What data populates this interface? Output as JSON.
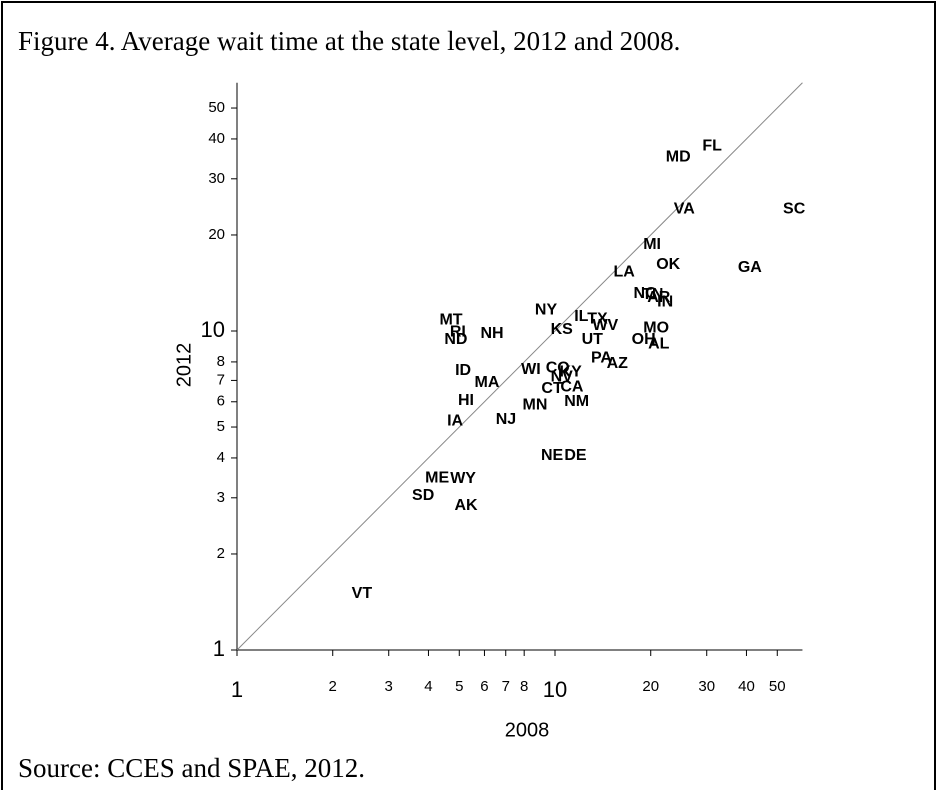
{
  "chart_data": {
    "type": "scatter",
    "title": "Figure 4. Average wait time at the state level, 2012 and 2008.",
    "x_label": "2008",
    "y_label": "2012",
    "source": "Source:  CCES and SPAE, 2012.",
    "log_x": true,
    "log_y": true,
    "xlim": [
      1,
      60
    ],
    "ylim": [
      1,
      60
    ],
    "xticks": [
      1,
      2,
      3,
      4,
      5,
      6,
      7,
      8,
      10,
      20,
      30,
      40,
      50
    ],
    "yticks": [
      1,
      2,
      3,
      4,
      5,
      6,
      7,
      8,
      10,
      20,
      30,
      40,
      50
    ],
    "diagonal": true,
    "point_labels": [
      "FL",
      "MD",
      "VA",
      "SC",
      "MI",
      "OK",
      "GA",
      "LA",
      "NC",
      "TN",
      "AR",
      "IN",
      "NY",
      "IL",
      "TX",
      "MT",
      "WV",
      "MO",
      "KS",
      "RI",
      "NH",
      "UT",
      "ND",
      "OH",
      "AL",
      "PA",
      "AZ",
      "ID",
      "WI",
      "CO",
      "NV",
      "KY",
      "MA",
      "CT",
      "CA",
      "HI",
      "MN",
      "NM",
      "IA",
      "NJ",
      "NE",
      "DE",
      "ME",
      "WY",
      "SD",
      "AK",
      "VT"
    ],
    "x": [
      31.2,
      24.4,
      25.5,
      56.5,
      20.2,
      22.7,
      41.0,
      16.5,
      19.2,
      20.3,
      21.2,
      22.2,
      9.37,
      12.1,
      13.6,
      4.71,
      14.4,
      20.8,
      10.5,
      4.95,
      6.34,
      13.1,
      4.88,
      19.0,
      21.2,
      14.0,
      15.7,
      5.14,
      8.4,
      10.2,
      10.5,
      11.2,
      6.11,
      9.79,
      11.3,
      5.25,
      8.65,
      11.7,
      4.85,
      7.01,
      9.79,
      11.6,
      4.26,
      5.14,
      3.85,
      5.25,
      2.47
    ],
    "y": [
      38.0,
      35.1,
      24.1,
      24.1,
      18.6,
      16.1,
      15.8,
      15.3,
      13.1,
      13.0,
      12.7,
      12.3,
      11.6,
      11.1,
      10.9,
      10.8,
      10.4,
      10.2,
      10.1,
      9.9,
      9.8,
      9.4,
      9.4,
      9.4,
      9.1,
      8.2,
      7.9,
      7.5,
      7.55,
      7.65,
      7.17,
      7.43,
      6.87,
      6.58,
      6.67,
      6.04,
      5.86,
      5.99,
      5.22,
      5.26,
      4.06,
      4.06,
      3.46,
      3.44,
      3.04,
      2.83,
      1.5
    ]
  }
}
